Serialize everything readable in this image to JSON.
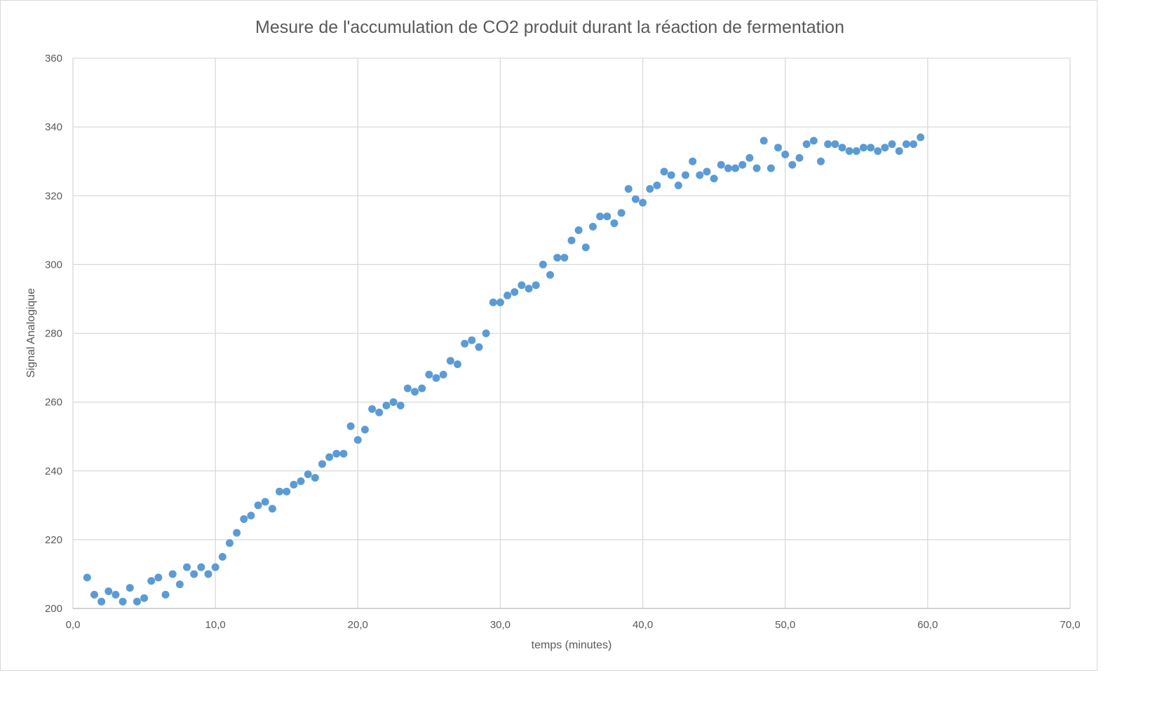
{
  "chart_data": {
    "type": "scatter",
    "title": "Mesure de l'accumulation de CO2 produit durant la réaction de fermentation",
    "xlabel": "temps (minutes)",
    "ylabel": "Signal Analogique",
    "xlim": [
      0,
      70
    ],
    "ylim": [
      200,
      360
    ],
    "x_ticks": [
      0,
      10,
      20,
      30,
      40,
      50,
      60,
      70
    ],
    "x_tick_labels": [
      "0,0",
      "10,0",
      "20,0",
      "30,0",
      "40,0",
      "50,0",
      "60,0",
      "70,0"
    ],
    "y_ticks": [
      200,
      220,
      240,
      260,
      280,
      300,
      320,
      340,
      360
    ],
    "y_tick_labels": [
      "200",
      "220",
      "240",
      "260",
      "280",
      "300",
      "320",
      "340",
      "360"
    ],
    "grid": true,
    "legend": "none",
    "marker_color": "#5b9bd5",
    "x": [
      1.0,
      1.5,
      2.0,
      2.5,
      3.0,
      3.5,
      4.0,
      4.5,
      5.0,
      5.5,
      6.0,
      6.5,
      7.0,
      7.5,
      8.0,
      8.5,
      9.0,
      9.5,
      10.0,
      10.5,
      11.0,
      11.5,
      12.0,
      12.5,
      13.0,
      13.5,
      14.0,
      14.5,
      15.0,
      15.5,
      16.0,
      16.5,
      17.0,
      17.5,
      18.0,
      18.5,
      19.0,
      19.5,
      20.0,
      20.5,
      21.0,
      21.5,
      22.0,
      22.5,
      23.0,
      23.5,
      24.0,
      24.5,
      25.0,
      25.5,
      26.0,
      26.5,
      27.0,
      27.5,
      28.0,
      28.5,
      29.0,
      29.5,
      30.0,
      30.5,
      31.0,
      31.5,
      32.0,
      32.5,
      33.0,
      33.5,
      34.0,
      34.5,
      35.0,
      35.5,
      36.0,
      36.5,
      37.0,
      37.5,
      38.0,
      38.5,
      39.0,
      39.5,
      40.0,
      40.5,
      41.0,
      41.5,
      42.0,
      42.5,
      43.0,
      43.5,
      44.0,
      44.5,
      45.0,
      45.5,
      46.0,
      46.5,
      47.0,
      47.5,
      48.0,
      48.5,
      49.0,
      49.5,
      50.0,
      50.5,
      51.0,
      51.5,
      52.0,
      52.5,
      53.0,
      53.5,
      54.0,
      54.5,
      55.0,
      55.5,
      56.0,
      56.5,
      57.0,
      57.5,
      58.0,
      58.5,
      59.0,
      59.5
    ],
    "y": [
      209,
      204,
      202,
      205,
      204,
      202,
      206,
      202,
      203,
      208,
      209,
      204,
      210,
      207,
      212,
      210,
      212,
      210,
      212,
      215,
      219,
      222,
      226,
      227,
      230,
      231,
      229,
      234,
      234,
      236,
      237,
      239,
      238,
      242,
      244,
      245,
      245,
      253,
      249,
      252,
      258,
      257,
      259,
      260,
      259,
      264,
      263,
      264,
      268,
      267,
      268,
      272,
      271,
      277,
      278,
      276,
      280,
      289,
      289,
      291,
      292,
      294,
      293,
      294,
      300,
      297,
      302,
      302,
      307,
      310,
      305,
      311,
      314,
      314,
      312,
      315,
      322,
      319,
      318,
      322,
      323,
      327,
      326,
      323,
      326,
      330,
      326,
      327,
      325,
      329,
      328,
      328,
      329,
      331,
      328,
      336,
      328,
      334,
      332,
      329,
      331,
      335,
      336,
      330,
      335,
      335,
      334,
      333,
      333,
      334,
      334,
      333,
      334,
      335,
      333,
      335,
      335,
      337
    ]
  }
}
